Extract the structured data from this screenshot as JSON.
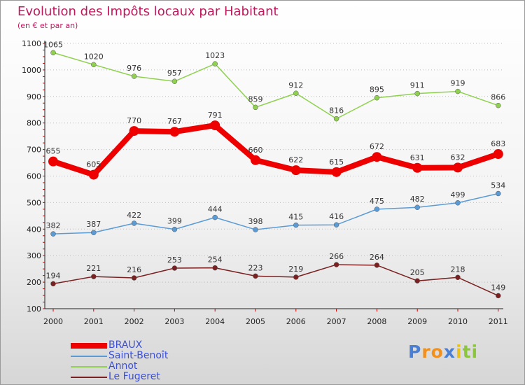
{
  "chart_data": {
    "type": "line",
    "title": "Evolution des Impôts locaux par Habitant",
    "subtitle": "(en € et par an)",
    "x": [
      "2000",
      "2001",
      "2002",
      "2003",
      "2004",
      "2005",
      "2006",
      "2007",
      "2008",
      "2009",
      "2010",
      "2011"
    ],
    "ylim": [
      100,
      1100
    ],
    "yticks": [
      100,
      200,
      300,
      400,
      500,
      600,
      700,
      800,
      900,
      1000,
      1100
    ],
    "grid": "horizontal dotted",
    "legend_position": "bottom-left",
    "series": [
      {
        "name": "BRAUX",
        "color": "#ee0000",
        "emphasis": true,
        "values": [
          655,
          605,
          770,
          767,
          791,
          660,
          622,
          615,
          672,
          631,
          632,
          683
        ]
      },
      {
        "name": "Saint-Benoît",
        "color": "#5b9bd5",
        "values": [
          382,
          387,
          422,
          399,
          444,
          398,
          415,
          416,
          475,
          482,
          499,
          534
        ]
      },
      {
        "name": "Annot",
        "color": "#8fd14f",
        "values": [
          1065,
          1020,
          976,
          957,
          1023,
          859,
          912,
          816,
          895,
          911,
          919,
          866
        ]
      },
      {
        "name": "Le Fugeret",
        "color": "#7b2020",
        "values": [
          194,
          221,
          216,
          253,
          254,
          223,
          219,
          266,
          264,
          205,
          218,
          149
        ]
      }
    ]
  },
  "logo": {
    "text": "Proxiti",
    "letters": [
      "P",
      "r",
      "o",
      "x",
      "i",
      "t",
      "i"
    ],
    "colors": [
      "#4a7fd6",
      "#f2901e",
      "#f2901e",
      "#4a7fd6",
      "#e8c21a",
      "#8cc63f",
      "#8cc63f"
    ]
  }
}
